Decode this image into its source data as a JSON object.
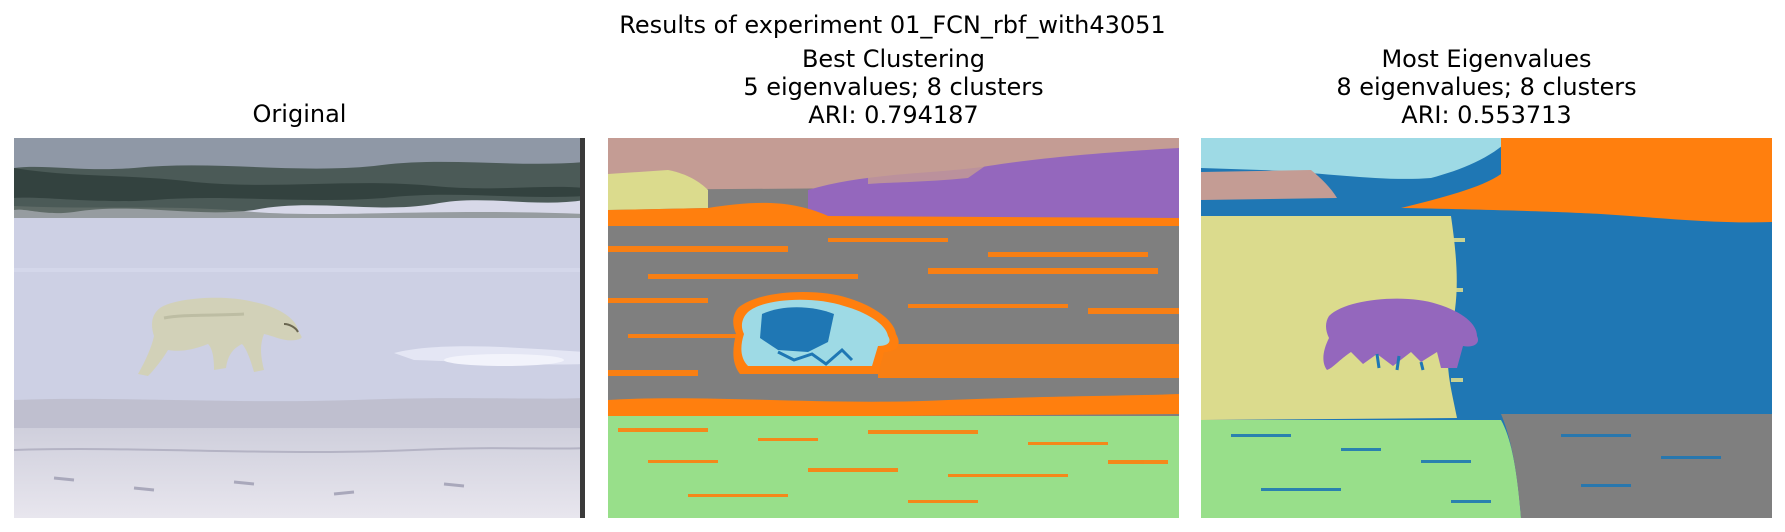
{
  "figure": {
    "suptitle": "Results of experiment 01_FCN_rbf_with43051"
  },
  "panels": [
    {
      "title_lines": [
        "Original"
      ]
    },
    {
      "title_lines": [
        "Best Clustering",
        "5 eigenvalues; 8 clusters",
        "ARI: 0.794187"
      ]
    },
    {
      "title_lines": [
        "Most Eigenvalues",
        "8 eigenvalues; 8 clusters",
        "ARI: 0.553713"
      ]
    }
  ],
  "palette": {
    "blue": "#1f77b4",
    "orange": "#ff7f0e",
    "green": "#98df8a",
    "gray": "#7f7f7f",
    "purple": "#9467bd",
    "tan": "#c49c94",
    "khaki": "#dbdb8d",
    "cyan": "#9edae5"
  }
}
